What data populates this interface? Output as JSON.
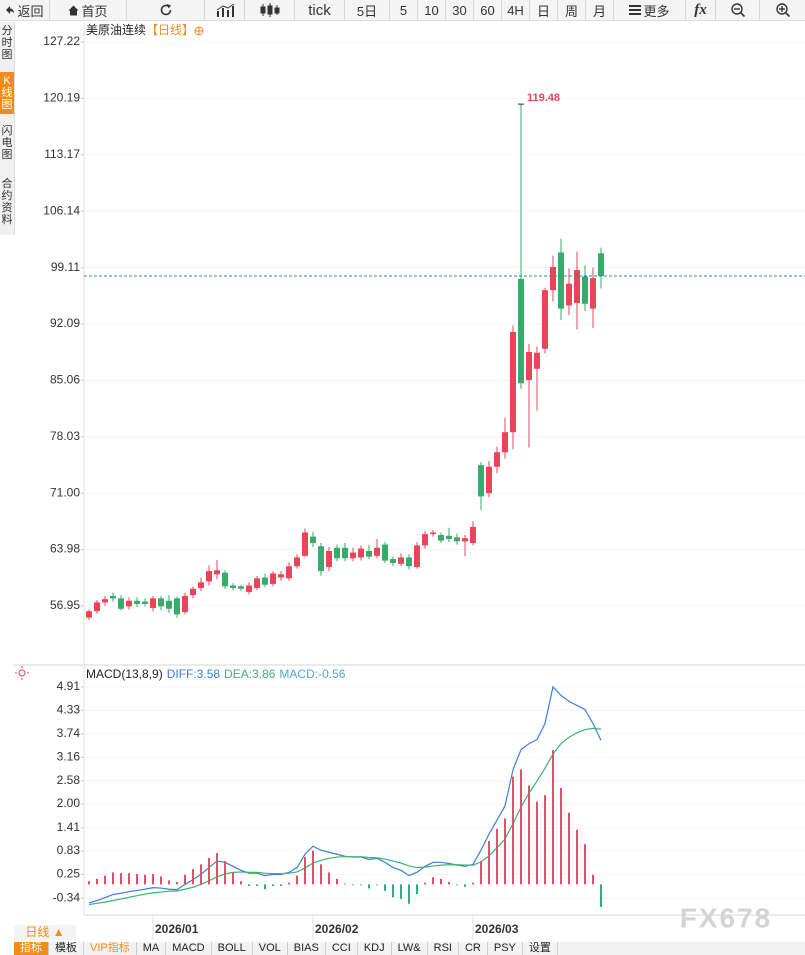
{
  "toolbar": {
    "buttons": [
      "返回",
      "首页",
      "tick",
      "5日",
      "5",
      "10",
      "30",
      "60",
      "4H",
      "日",
      "周",
      "月",
      "更多",
      "fx"
    ]
  },
  "sidebar": {
    "tabs": [
      "分时图",
      "K线图",
      "闪电图",
      "合约资料"
    ],
    "active": 1
  },
  "chart_data": [
    {
      "type": "candlestick",
      "title": "美原油连续",
      "period": "【日线】",
      "open": [
        55.5,
        56.3,
        57.4,
        58.2,
        57.9,
        56.9,
        57.6,
        57.5,
        56.7,
        57.9,
        57.6,
        57.9,
        56.2,
        58.3,
        59.2,
        60.0,
        60.9,
        61.1,
        59.5,
        59.4,
        58.7,
        59.2,
        60.5,
        59.7,
        60.5,
        60.4,
        61.9,
        63.2,
        65.6,
        64.4,
        61.8,
        64.2,
        64.2,
        62.9,
        63.0,
        63.8,
        63.2,
        64.6,
        62.8,
        62.2,
        63.0,
        61.8,
        64.5,
        65.9,
        65.8,
        65.7,
        65.5,
        65.0,
        64.8,
        74.5,
        71.0,
        74.3,
        76.1,
        78.6,
        97.7,
        85.1,
        86.5,
        89.0,
        96.3,
        101.0,
        94.4,
        94.7,
        98.0,
        94.0,
        100.9
      ],
      "high": [
        56.5,
        57.7,
        58.2,
        58.6,
        58.3,
        58.0,
        58.0,
        57.9,
        58.2,
        58.2,
        58.3,
        58.1,
        58.6,
        59.4,
        60.5,
        62.0,
        62.7,
        61.4,
        59.8,
        59.6,
        59.9,
        60.7,
        61.0,
        61.3,
        61.3,
        62.4,
        63.4,
        66.6,
        66.2,
        64.8,
        64.3,
        64.6,
        64.8,
        64.2,
        64.5,
        64.6,
        65.3,
        64.9,
        63.1,
        63.5,
        63.4,
        64.9,
        66.3,
        66.4,
        66.1,
        66.7,
        66.0,
        65.8,
        67.5,
        74.9,
        75.0,
        76.8,
        80.4,
        91.9,
        119.48,
        89.6,
        89.3,
        96.6,
        100.6,
        102.7,
        99.0,
        101.1,
        99.4,
        99.1,
        101.6
      ],
      "low": [
        55.2,
        56.0,
        57.0,
        57.5,
        56.4,
        56.5,
        56.8,
        56.9,
        56.3,
        56.4,
        56.1,
        55.5,
        55.9,
        57.9,
        58.8,
        59.5,
        60.3,
        59.1,
        58.9,
        58.8,
        58.4,
        58.9,
        59.3,
        59.4,
        60.1,
        60.1,
        61.6,
        63.0,
        64.3,
        60.7,
        61.3,
        62.5,
        62.5,
        62.5,
        62.6,
        62.8,
        62.9,
        62.3,
        61.9,
        61.9,
        61.5,
        61.6,
        64.1,
        65.6,
        64.8,
        64.9,
        64.6,
        63.2,
        64.5,
        68.9,
        70.5,
        73.5,
        75.3,
        76.5,
        84.0,
        76.7,
        81.3,
        88.4,
        94.9,
        92.6,
        93.2,
        91.4,
        93.7,
        91.6,
        96.5
      ],
      "close": [
        56.3,
        57.4,
        57.8,
        57.9,
        56.6,
        57.6,
        57.2,
        57.2,
        57.9,
        56.9,
        56.6,
        55.9,
        58.2,
        59.1,
        59.9,
        61.3,
        61.4,
        59.4,
        59.2,
        59.1,
        59.5,
        60.4,
        59.6,
        61.0,
        60.9,
        61.9,
        63.0,
        66.1,
        64.8,
        61.3,
        63.8,
        62.9,
        62.9,
        63.6,
        64.1,
        63.1,
        64.2,
        62.6,
        62.3,
        63.0,
        61.9,
        64.5,
        65.9,
        66.1,
        65.1,
        65.3,
        65.0,
        65.4,
        66.8,
        70.6,
        74.3,
        76.1,
        78.6,
        91.1,
        84.7,
        88.6,
        88.5,
        96.3,
        99.2,
        94.0,
        97.1,
        98.8,
        94.6,
        97.8,
        98.07
      ],
      "up_color": "#e8455a",
      "down_color": "#3aaa6c",
      "last_line_color": "#2a8ca0",
      "annotation_color": "#e8455a",
      "ylim": [
        49.97,
        129.71
      ],
      "yticks": [
        127.22,
        120.19,
        113.17,
        106.14,
        99.11,
        92.09,
        85.06,
        78.03,
        {
          "value": 71,
          "label": "71.00"
        },
        63.98,
        56.95
      ],
      "grid": true
    },
    {
      "type": "macd",
      "title": "MACD(13,8,9)",
      "categories": [
        null,
        null,
        null,
        null,
        null,
        null,
        null,
        null,
        "2026/01",
        null,
        null,
        null,
        null,
        null,
        null,
        null,
        null,
        null,
        null,
        null,
        null,
        null,
        null,
        null,
        null,
        null,
        null,
        null,
        "2026/02",
        null,
        null,
        null,
        null,
        null,
        null,
        null,
        null,
        null,
        null,
        null,
        null,
        null,
        null,
        null,
        null,
        null,
        null,
        null,
        "2026/03",
        null,
        null,
        null,
        null,
        null,
        null,
        null,
        null,
        null,
        null,
        null,
        null,
        null,
        null,
        null,
        null
      ],
      "series": [
        {
          "name": "DIFF:3.58",
          "color": "#3a7fe0",
          "values": [
            -0.46,
            -0.4,
            -0.33,
            -0.25,
            -0.22,
            -0.18,
            -0.15,
            -0.12,
            -0.08,
            -0.09,
            -0.12,
            -0.13,
            0.0,
            0.12,
            0.25,
            0.42,
            0.58,
            0.55,
            0.45,
            0.35,
            0.28,
            0.28,
            0.22,
            0.25,
            0.25,
            0.3,
            0.42,
            0.75,
            0.95,
            0.85,
            0.8,
            0.75,
            0.7,
            0.68,
            0.68,
            0.62,
            0.65,
            0.55,
            0.42,
            0.35,
            0.22,
            0.3,
            0.45,
            0.55,
            0.55,
            0.52,
            0.48,
            0.45,
            0.5,
            0.85,
            1.25,
            1.6,
            1.95,
            2.85,
            3.35,
            3.5,
            3.6,
            4.0,
            4.91,
            4.7,
            4.55,
            4.45,
            4.35,
            4.0,
            3.58
          ]
        },
        {
          "name": "DEA:3.86",
          "color": "#3cb371",
          "values": [
            -0.5,
            -0.47,
            -0.44,
            -0.4,
            -0.36,
            -0.32,
            -0.28,
            -0.24,
            -0.21,
            -0.19,
            -0.17,
            -0.16,
            -0.12,
            -0.07,
            0.0,
            0.09,
            0.19,
            0.26,
            0.3,
            0.31,
            0.3,
            0.3,
            0.28,
            0.27,
            0.27,
            0.28,
            0.31,
            0.41,
            0.53,
            0.6,
            0.65,
            0.68,
            0.69,
            0.69,
            0.69,
            0.67,
            0.66,
            0.63,
            0.58,
            0.53,
            0.46,
            0.42,
            0.43,
            0.46,
            0.48,
            0.49,
            0.49,
            0.48,
            0.48,
            0.56,
            0.71,
            0.91,
            1.13,
            1.51,
            1.92,
            2.27,
            2.57,
            2.89,
            3.24,
            3.5,
            3.66,
            3.77,
            3.85,
            3.88,
            3.86
          ]
        },
        {
          "name": "MACD:-0.56",
          "color": "#4aa8d8",
          "up_color": "#e0506a",
          "down_color": "#2ab07f",
          "values": [
            0.08,
            0.14,
            0.22,
            0.3,
            0.28,
            0.28,
            0.26,
            0.24,
            0.26,
            0.2,
            0.1,
            0.06,
            0.24,
            0.38,
            0.5,
            0.66,
            0.78,
            0.58,
            0.3,
            0.08,
            -0.04,
            -0.04,
            -0.12,
            -0.04,
            -0.04,
            0.04,
            0.22,
            0.68,
            0.84,
            0.5,
            0.3,
            0.14,
            0.02,
            -0.02,
            -0.02,
            -0.1,
            -0.02,
            -0.16,
            -0.32,
            -0.36,
            -0.48,
            -0.24,
            0.04,
            0.18,
            0.14,
            0.06,
            -0.02,
            -0.06,
            0.04,
            0.58,
            1.08,
            1.38,
            1.64,
            2.68,
            2.86,
            2.46,
            2.06,
            2.22,
            3.34,
            2.4,
            1.78,
            1.36,
            1.0,
            0.24,
            -0.56
          ]
        }
      ],
      "ylim": [
        -0.76,
        5.38
      ],
      "yticks": [
        4.91,
        4.33,
        3.74,
        3.16,
        2.58,
        {
          "value": 2,
          "label": "2.00"
        },
        1.41,
        0.83,
        0.25,
        -0.34
      ]
    }
  ],
  "footer": {
    "period_button": "日线 ▲",
    "tabs": [
      "指标",
      "模板",
      "VIP指标",
      "MA",
      "MACD",
      "BOLL",
      "VOL",
      "BIAS",
      "CCI",
      "KDJ",
      "LW&",
      "RSI",
      "CR",
      "PSY",
      "设置"
    ],
    "active": 0
  },
  "watermark": "FX678"
}
